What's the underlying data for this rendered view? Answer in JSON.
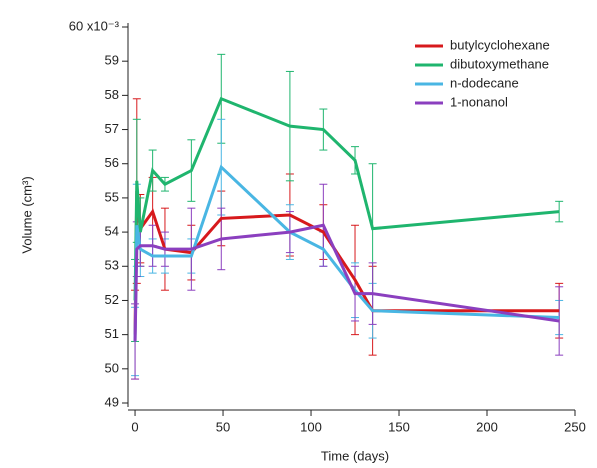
{
  "chart_data": {
    "type": "line",
    "x_label": "Time (days)",
    "y_label": "Volume (cm³)",
    "x": [
      0,
      1,
      3,
      10,
      17,
      32,
      49,
      88,
      107,
      125,
      135,
      241
    ],
    "series": [
      {
        "name": "butylcyclohexane",
        "color": "#d7191c",
        "values": [
          51.0,
          55.2,
          54.1,
          54.6,
          53.5,
          53.4,
          54.4,
          54.5,
          54.0,
          52.6,
          51.7,
          51.7
        ],
        "errors": [
          1.3,
          2.7,
          1.0,
          1.0,
          1.2,
          0.8,
          0.8,
          1.2,
          0.8,
          1.6,
          1.3,
          0.8
        ]
      },
      {
        "name": "dibutoxymethane",
        "color": "#1fb56e",
        "values": [
          52.0,
          55.5,
          54.0,
          55.8,
          55.4,
          55.8,
          57.9,
          57.1,
          57.0,
          56.1,
          54.1,
          54.6
        ],
        "errors": [
          1.2,
          1.8,
          1.0,
          0.6,
          0.2,
          0.9,
          1.3,
          1.6,
          0.6,
          0.4,
          1.9,
          0.3
        ]
      },
      {
        "name": "n-dodecane",
        "color": "#49b6e3",
        "values": [
          50.8,
          54.2,
          53.5,
          53.3,
          53.3,
          53.3,
          55.9,
          54.0,
          53.5,
          52.3,
          51.7,
          51.5
        ],
        "errors": [
          1.0,
          1.2,
          0.8,
          0.5,
          0.5,
          0.5,
          1.4,
          0.8,
          0.5,
          0.8,
          0.8,
          0.5
        ]
      },
      {
        "name": "1-nonanol",
        "color": "#8b3fbf",
        "values": [
          50.8,
          53.5,
          53.6,
          53.6,
          53.5,
          53.5,
          53.8,
          54.0,
          54.2,
          52.2,
          52.2,
          51.4
        ],
        "errors": [
          1.1,
          0.8,
          0.6,
          0.6,
          0.5,
          1.2,
          0.9,
          0.6,
          1.2,
          0.8,
          0.9,
          1.0
        ]
      }
    ],
    "xlim": [
      -4,
      250
    ],
    "xticks": [
      0,
      50,
      100,
      150,
      200,
      250
    ],
    "ylim": [
      49,
      60
    ],
    "yticks": [
      49,
      50,
      51,
      52,
      53,
      54,
      55,
      56,
      57,
      58,
      59,
      {
        "value": 60,
        "label": "60 x10⁻³"
      }
    ],
    "legend": "upper right"
  }
}
